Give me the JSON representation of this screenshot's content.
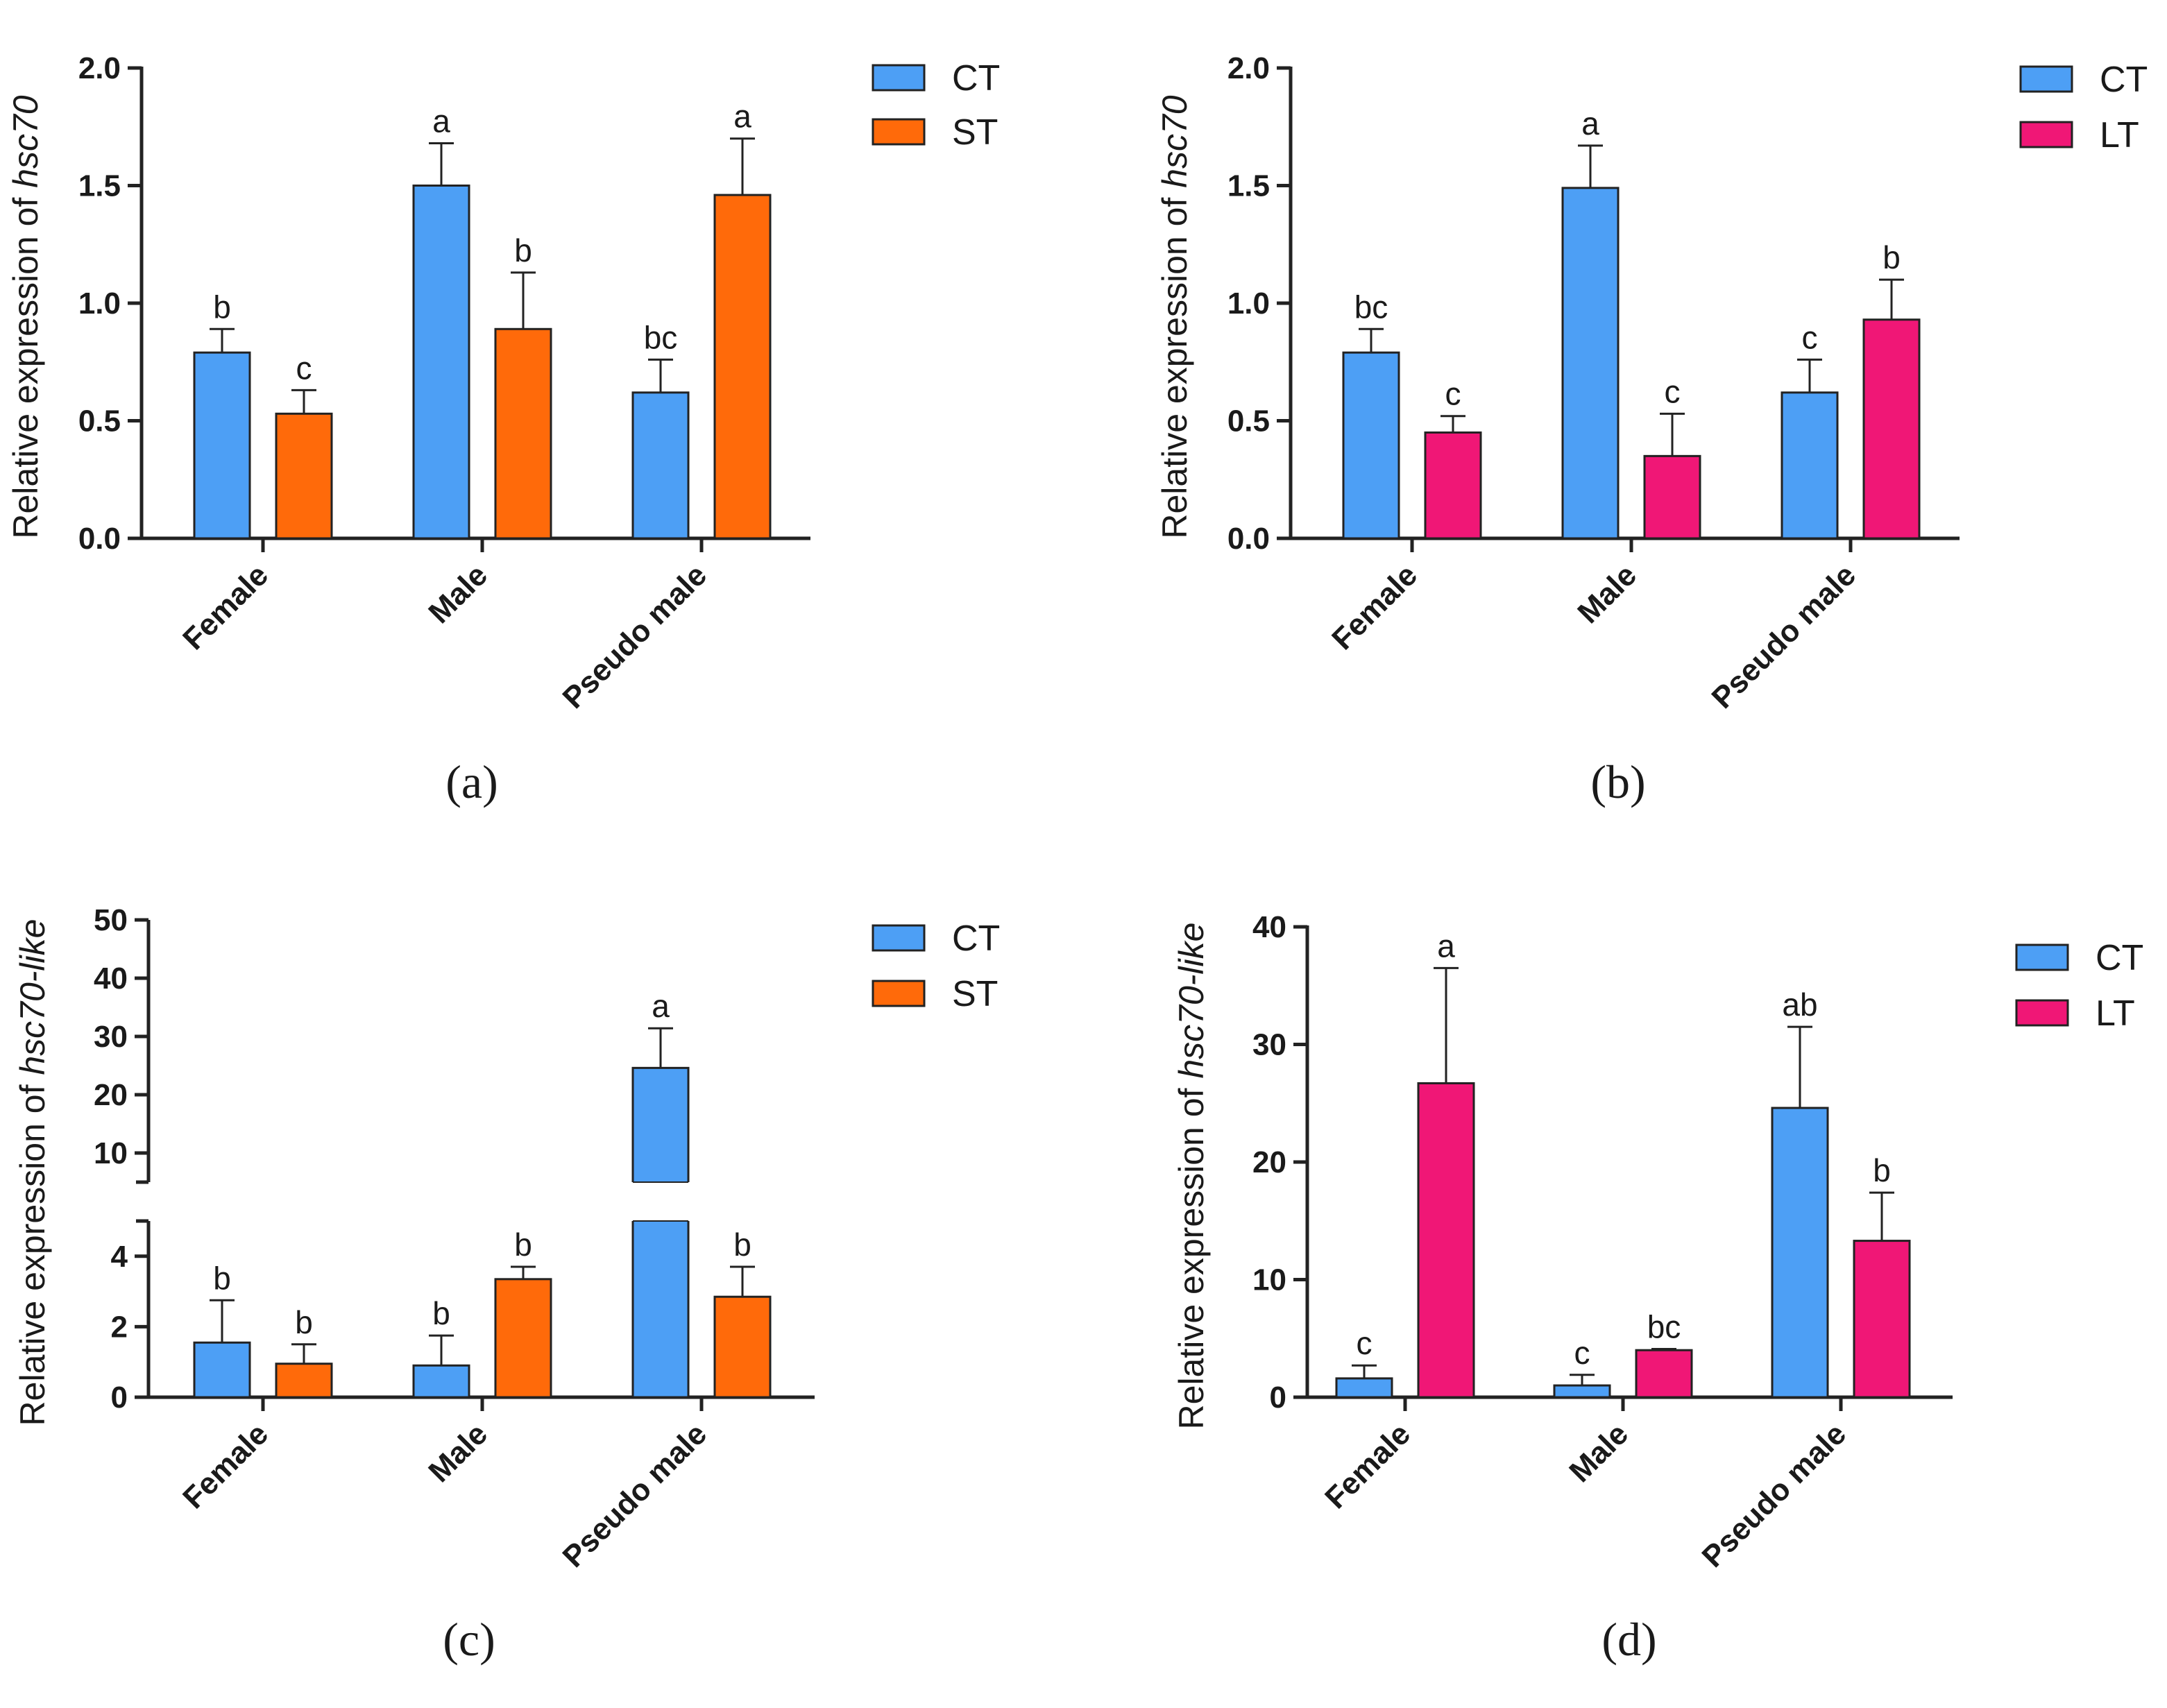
{
  "chart_data": [
    {
      "id": "a",
      "type": "bar",
      "panel_label": "(a)",
      "ylabel_prefix": "Relative expression of ",
      "ylabel_gene": "hsc70",
      "categories": [
        "Female",
        "Male",
        "Pseudo male"
      ],
      "ylim": [
        0,
        2.0
      ],
      "yticks": [
        "0.0",
        "0.5",
        "1.0",
        "1.5",
        "2.0"
      ],
      "ytick_values": [
        0,
        0.5,
        1.0,
        1.5,
        2.0
      ],
      "legend_position": "top-right",
      "series": [
        {
          "name": "CT",
          "color": "#4d9ff5",
          "values": [
            0.79,
            1.5,
            0.62
          ],
          "errors": [
            0.1,
            0.18,
            0.14
          ],
          "sig": [
            "b",
            "a",
            "bc"
          ]
        },
        {
          "name": "ST",
          "color": "#ff6a0a",
          "values": [
            0.53,
            0.89,
            1.46
          ],
          "errors": [
            0.1,
            0.24,
            0.24
          ],
          "sig": [
            "c",
            "b",
            "a"
          ]
        }
      ]
    },
    {
      "id": "b",
      "type": "bar",
      "panel_label": "(b)",
      "ylabel_prefix": "Relative expression of ",
      "ylabel_gene": "hsc70",
      "categories": [
        "Female",
        "Male",
        "Pseudo male"
      ],
      "ylim": [
        0,
        2.0
      ],
      "yticks": [
        "0.0",
        "0.5",
        "1.0",
        "1.5",
        "2.0"
      ],
      "ytick_values": [
        0,
        0.5,
        1.0,
        1.5,
        2.0
      ],
      "legend_position": "top-right",
      "series": [
        {
          "name": "CT",
          "color": "#4d9ff5",
          "values": [
            0.79,
            1.49,
            0.62
          ],
          "errors": [
            0.1,
            0.18,
            0.14
          ],
          "sig": [
            "bc",
            "a",
            "c"
          ]
        },
        {
          "name": "LT",
          "color": "#f01776",
          "values": [
            0.45,
            0.35,
            0.93
          ],
          "errors": [
            0.07,
            0.18,
            0.17
          ],
          "sig": [
            "c",
            "c",
            "b"
          ]
        }
      ]
    },
    {
      "id": "c",
      "type": "bar",
      "panel_label": "(c)",
      "ylabel_prefix": "Relative expression of ",
      "ylabel_gene": "hsc70-like",
      "categories": [
        "Female",
        "Male",
        "Pseudo male"
      ],
      "broken_axis": true,
      "lower_ylim": [
        0,
        5
      ],
      "lower_yticks": [
        "0",
        "2",
        "4"
      ],
      "lower_ytick_values": [
        0,
        2,
        4
      ],
      "upper_ylim": [
        5,
        50
      ],
      "upper_yticks": [
        "10",
        "20",
        "30",
        "40",
        "50"
      ],
      "upper_ytick_values": [
        10,
        20,
        30,
        40,
        50
      ],
      "legend_position": "top-right",
      "series": [
        {
          "name": "CT",
          "color": "#4d9ff5",
          "values": [
            1.55,
            0.9,
            24.6
          ],
          "errors": [
            1.2,
            0.85,
            6.8
          ],
          "sig": [
            "b",
            "b",
            "a"
          ]
        },
        {
          "name": "ST",
          "color": "#ff6a0a",
          "values": [
            0.95,
            3.35,
            2.85
          ],
          "errors": [
            0.55,
            0.35,
            0.85
          ],
          "sig": [
            "b",
            "b",
            "b"
          ]
        }
      ]
    },
    {
      "id": "d",
      "type": "bar",
      "panel_label": "(d)",
      "ylabel_prefix": "Relative expression of ",
      "ylabel_gene": "hsc70-like",
      "categories": [
        "Female",
        "Male",
        "Pseudo male"
      ],
      "ylim": [
        0,
        40
      ],
      "yticks": [
        "0",
        "10",
        "20",
        "30",
        "40"
      ],
      "ytick_values": [
        0,
        10,
        20,
        30,
        40
      ],
      "legend_position": "top-right",
      "series": [
        {
          "name": "CT",
          "color": "#4d9ff5",
          "values": [
            1.6,
            1.0,
            24.6
          ],
          "errors": [
            1.1,
            0.9,
            6.9
          ],
          "sig": [
            "c",
            "c",
            "ab"
          ]
        },
        {
          "name": "LT",
          "color": "#f01776",
          "values": [
            26.7,
            4.0,
            13.3
          ],
          "errors": [
            9.8,
            0.1,
            4.1
          ],
          "sig": [
            "a",
            "bc",
            "b"
          ]
        }
      ]
    }
  ]
}
